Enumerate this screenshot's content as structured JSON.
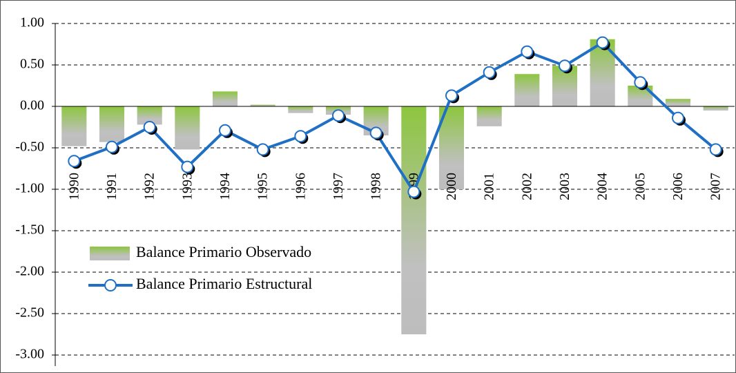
{
  "chart_data": {
    "type": "bar",
    "categories": [
      "1990",
      "1991",
      "1992",
      "1993",
      "1994",
      "1995",
      "1996",
      "1997",
      "1998",
      "1999",
      "2000",
      "2001",
      "2002",
      "2003",
      "2004",
      "2005",
      "2006",
      "2007"
    ],
    "series": [
      {
        "name": "Balance Primario Observado",
        "type": "bar",
        "color": "#8dc63f",
        "values": [
          -0.48,
          -0.43,
          -0.22,
          -0.52,
          0.18,
          0.02,
          -0.08,
          -0.1,
          -0.35,
          -2.75,
          -1.0,
          -0.24,
          0.39,
          0.49,
          0.81,
          0.25,
          0.09,
          -0.05
        ]
      },
      {
        "name": "Balance Primario Estructural",
        "type": "line",
        "color": "#1f6fc5",
        "values": [
          -0.66,
          -0.49,
          -0.25,
          -0.73,
          -0.29,
          -0.52,
          -0.36,
          -0.11,
          -0.32,
          -1.03,
          0.13,
          0.41,
          0.66,
          0.49,
          0.77,
          0.29,
          -0.14,
          -0.52
        ]
      }
    ],
    "ylim": [
      -3,
      1
    ],
    "yticks": [
      {
        "value": 1,
        "label": "1.00"
      },
      {
        "value": 0.5,
        "label": "0.50"
      },
      {
        "value": 0,
        "label": "0.00"
      },
      {
        "value": -0.5,
        "label": "-0.50"
      },
      {
        "value": -1,
        "label": "-1.00"
      },
      {
        "value": -1.5,
        "label": "-1.50"
      },
      {
        "value": -2,
        "label": "-2.00"
      },
      {
        "value": -2.5,
        "label": "-2.50"
      },
      {
        "value": -3,
        "label": "-3.00"
      }
    ],
    "grid": true
  }
}
